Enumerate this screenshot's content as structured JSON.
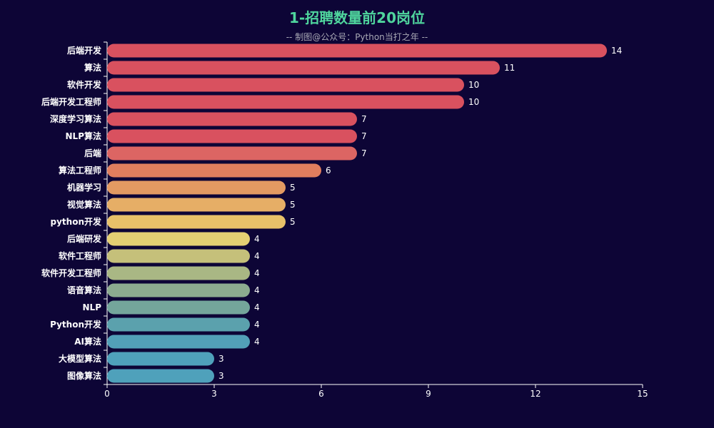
{
  "chart_data": {
    "type": "bar",
    "orientation": "horizontal",
    "title": "1-招聘数量前20岗位",
    "subtitle": "-- 制图@公众号：Python当打之年 --",
    "categories": [
      "后端开发",
      "算法",
      "软件开发",
      "后端开发工程师",
      "深度学习算法",
      "NLP算法",
      "后端",
      "算法工程师",
      "机器学习",
      "视觉算法",
      "python开发",
      "后端研发",
      "软件工程师",
      "软件开发工程师",
      "语音算法",
      "NLP",
      "Python开发",
      "AI算法",
      "大模型算法",
      "图像算法"
    ],
    "values": [
      14,
      11,
      10,
      10,
      7,
      7,
      7,
      6,
      5,
      5,
      5,
      4,
      4,
      4,
      4,
      4,
      4,
      4,
      3,
      3
    ],
    "bar_colors": [
      "#d9515f",
      "#d9515f",
      "#d9515f",
      "#d9515f",
      "#d9515f",
      "#d9515f",
      "#dc6563",
      "#e07e5e",
      "#e39a62",
      "#e6ae66",
      "#e8c169",
      "#e4cf73",
      "#c5c07a",
      "#a9b784",
      "#8cab8f",
      "#74a59b",
      "#5ba1ad",
      "#52a0b8",
      "#4fa1bb",
      "#4fa1bb"
    ],
    "xlim": [
      0,
      15
    ],
    "x_ticks": [
      0,
      3,
      6,
      9,
      12,
      15
    ],
    "grid": false,
    "legend": "none",
    "title_color": "#4fd59d",
    "subtitle_color": "#a9a9b5",
    "text_color": "#ffffff",
    "background": "#0d0536"
  }
}
